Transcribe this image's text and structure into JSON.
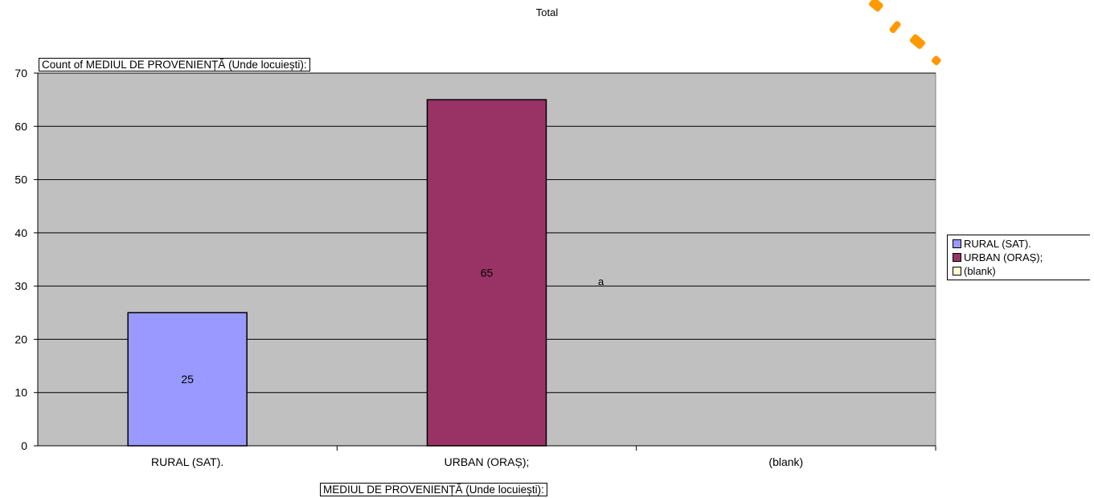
{
  "chart_data": {
    "type": "bar",
    "title": "Total",
    "ylabel": "Count of MEDIUL DE PROVENIENȚĂ (Unde locuiești):",
    "xlabel": "MEDIUL DE PROVENIENȚĂ (Unde locuiești):",
    "categories": [
      "RURAL (SAT).",
      "URBAN (ORAȘ);",
      "(blank)"
    ],
    "values": [
      25,
      65,
      0
    ],
    "data_labels": [
      "25",
      "65",
      ""
    ],
    "colors": [
      "#9999ff",
      "#993366",
      "#ffffcc"
    ],
    "ylim": [
      0,
      70
    ],
    "yticks": [
      0,
      10,
      20,
      30,
      40,
      50,
      60,
      70
    ],
    "grid": true,
    "legend_position": "right",
    "plot_background": "#c0c0c0",
    "annotation": "a"
  },
  "legend": {
    "items": [
      {
        "label": "RURAL (SAT).",
        "color": "#9999ff"
      },
      {
        "label": "URBAN (ORAȘ);",
        "color": "#993366"
      },
      {
        "label": "(blank)",
        "color": "#ffffcc"
      }
    ]
  },
  "watermark": {
    "color": "#ff9900"
  }
}
